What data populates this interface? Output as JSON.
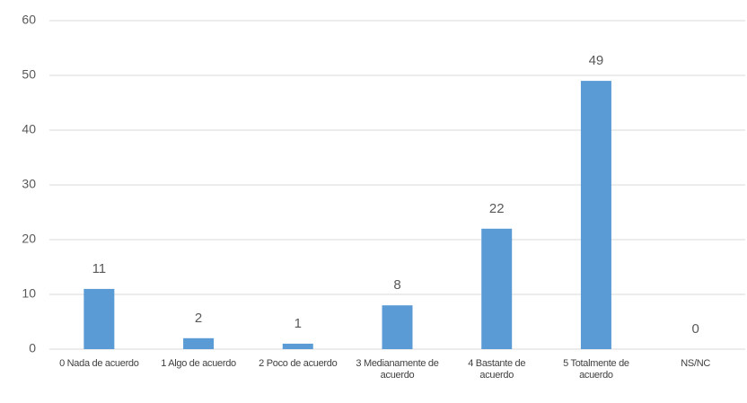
{
  "chart_data": {
    "type": "bar",
    "categories": [
      "0 Nada de acuerdo",
      "1 Algo de acuerdo",
      "2 Poco de acuerdo",
      "3 Medianamente de acuerdo",
      "4 Bastante de acuerdo",
      "5 Totalmente de acuerdo",
      "NS/NC"
    ],
    "values": [
      11,
      2,
      1,
      8,
      22,
      49,
      0
    ],
    "color": "#5b9bd5",
    "ylim": [
      0,
      60
    ],
    "yticks": [
      0,
      10,
      20,
      30,
      40,
      50,
      60
    ],
    "grid": true
  }
}
